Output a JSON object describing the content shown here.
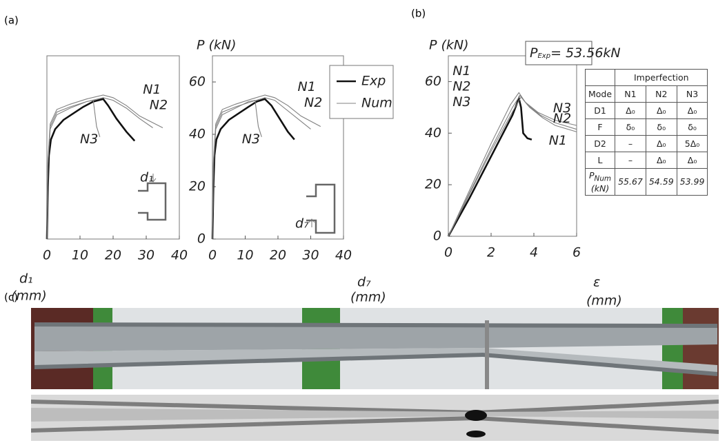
{
  "panel_labels": [
    "(a)",
    "(b)",
    "(c)"
  ],
  "chart_data": [
    {
      "type": "line",
      "xlabel": "d₁",
      "xunit": "(mm)",
      "xlim": [
        0,
        40
      ],
      "xticks": [
        0,
        10,
        20,
        30,
        40
      ],
      "ylim": [
        0,
        70
      ],
      "inset_label": "d₁",
      "series": [
        {
          "name": "Exp",
          "color": "#111111",
          "x": [
            0,
            0.3,
            0.6,
            1.2,
            2.5,
            5,
            8,
            11,
            14,
            17,
            18.5,
            21,
            24,
            26.5
          ],
          "values": [
            0,
            20,
            32,
            38,
            42,
            45.5,
            48,
            50.5,
            52.5,
            53.5,
            51,
            46,
            41,
            37.5
          ]
        },
        {
          "name": "N1",
          "color": "#808080",
          "x": [
            0,
            0.3,
            1,
            3,
            7,
            12,
            17,
            20,
            24,
            28,
            35
          ],
          "values": [
            0,
            30,
            44,
            49.5,
            51.5,
            53.5,
            55,
            54,
            51,
            47,
            42.5
          ]
        },
        {
          "name": "N2",
          "color": "#808080",
          "x": [
            0,
            0.3,
            1,
            3,
            7,
            12,
            17,
            20,
            24,
            28,
            32
          ],
          "values": [
            0,
            29,
            43,
            48.5,
            50.5,
            52.5,
            54,
            53,
            50,
            46,
            42.5
          ]
        },
        {
          "name": "N3",
          "color": "#808080",
          "x": [
            0,
            0.3,
            1,
            3,
            7,
            12,
            14,
            14.5,
            15,
            16
          ],
          "values": [
            0,
            28,
            42,
            47.5,
            50,
            52.5,
            53,
            48,
            43,
            39
          ]
        }
      ]
    },
    {
      "type": "line",
      "xlabel": "d₇",
      "xunit": "(mm)",
      "ylabel": "P (kN)",
      "xlim": [
        0,
        40
      ],
      "xticks": [
        0,
        10,
        20,
        30,
        40
      ],
      "ylim": [
        0,
        70
      ],
      "yticks": [
        0,
        20,
        40,
        60
      ],
      "inset_label": "d₇",
      "legend": [
        {
          "label": "Exp",
          "color": "#111111"
        },
        {
          "label": "Num",
          "color": "#808080"
        }
      ],
      "series": [
        {
          "name": "Exp",
          "color": "#111111",
          "x": [
            0,
            0.3,
            0.6,
            1.2,
            2.5,
            5,
            8,
            11,
            13.5,
            16,
            18,
            20.5,
            23,
            25
          ],
          "values": [
            0,
            20,
            32,
            38,
            42,
            45.5,
            48,
            50.5,
            52.5,
            53.5,
            51,
            46,
            41,
            38
          ]
        },
        {
          "name": "N1",
          "color": "#808080",
          "x": [
            0,
            0.3,
            1,
            3,
            7,
            12,
            16,
            19,
            23,
            27,
            33
          ],
          "values": [
            0,
            30,
            44,
            49.5,
            51.5,
            53.5,
            55,
            54,
            51,
            47,
            43
          ]
        },
        {
          "name": "N2",
          "color": "#808080",
          "x": [
            0,
            0.3,
            1,
            3,
            7,
            12,
            16,
            19,
            22,
            26,
            30
          ],
          "values": [
            0,
            29,
            43,
            48.5,
            50.5,
            52.5,
            54,
            53,
            50,
            46,
            42
          ]
        },
        {
          "name": "N3",
          "color": "#808080",
          "x": [
            0,
            0.3,
            1,
            3,
            7,
            11,
            13,
            13.5,
            14,
            15
          ],
          "values": [
            0,
            28,
            42,
            47.5,
            50,
            52.5,
            53,
            48,
            43,
            39
          ]
        }
      ]
    },
    {
      "type": "line",
      "xlabel": "ε",
      "xunit": "(mm)",
      "ylabel": "P (kN)",
      "xlim": [
        0,
        6
      ],
      "xticks": [
        0,
        2,
        4,
        6
      ],
      "ylim": [
        0,
        70
      ],
      "yticks": [
        0,
        20,
        40,
        60
      ],
      "annotation": {
        "symbol": "P",
        "subscript": "Exp",
        "text": "= 53.56kN"
      },
      "series": [
        {
          "name": "Exp",
          "color": "#111111",
          "x": [
            0,
            1,
            2,
            3,
            3.3,
            3.4,
            3.5,
            3.7,
            3.9
          ],
          "values": [
            0,
            15,
            31,
            47,
            53.5,
            50,
            40,
            38,
            37.5
          ]
        },
        {
          "name": "N1",
          "color": "#808080",
          "x": [
            0,
            1,
            2,
            2.9,
            3.3,
            3.6,
            4.2,
            5,
            6
          ],
          "values": [
            0,
            18,
            36,
            51,
            55.7,
            52,
            48,
            45,
            43
          ]
        },
        {
          "name": "N2",
          "color": "#808080",
          "x": [
            0,
            1,
            2,
            3,
            3.35,
            3.7,
            4.3,
            5,
            6
          ],
          "values": [
            0,
            17,
            34,
            50,
            54.6,
            51,
            47,
            44,
            41.5
          ]
        },
        {
          "name": "N3",
          "color": "#808080",
          "x": [
            0,
            1,
            2,
            3.05,
            3.4,
            3.8,
            4.4,
            5,
            6
          ],
          "values": [
            0,
            16.5,
            33,
            49,
            54,
            50,
            46,
            43,
            40.5
          ]
        }
      ]
    }
  ],
  "table": {
    "header": "Imperfection",
    "columns": [
      "Mode",
      "N1",
      "N2",
      "N3"
    ],
    "rows": [
      [
        "D1",
        "Δ₀",
        "Δ₀",
        "Δ₀"
      ],
      [
        "F",
        "δ₀",
        "δ₀",
        "δ₀"
      ],
      [
        "D2",
        "–",
        "Δ₀",
        "5Δ₀"
      ],
      [
        "L",
        "–",
        "Δ₀",
        "Δ₀"
      ]
    ],
    "p_num": {
      "symbol": "P",
      "subscript": "Num",
      "unit": "(kN)",
      "values": [
        55.67,
        54.59,
        53.99
      ]
    }
  }
}
